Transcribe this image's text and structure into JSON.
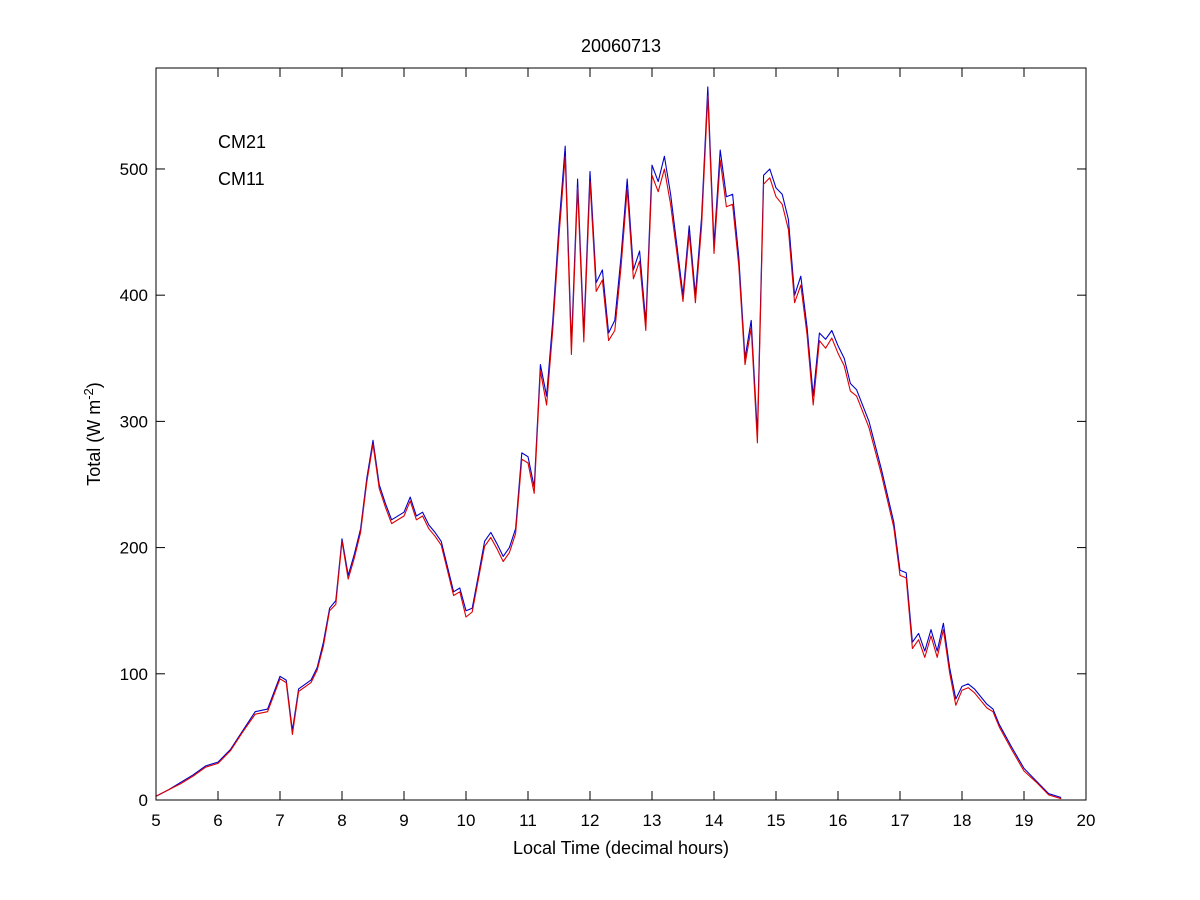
{
  "chart_data": {
    "type": "line",
    "title": "20060713",
    "xlabel": "Local Time (decimal hours)",
    "ylabel": {
      "prefix": "Total (W m",
      "superscript": "-2",
      "suffix": ")"
    },
    "xlim": [
      5,
      20
    ],
    "ylim": [
      0,
      580
    ],
    "xticks": [
      5,
      6,
      7,
      8,
      9,
      10,
      11,
      12,
      13,
      14,
      15,
      16,
      17,
      18,
      19,
      20
    ],
    "yticks": [
      0,
      100,
      200,
      300,
      400,
      500
    ],
    "grid": false,
    "legend_position": "top-left",
    "series": [
      {
        "name": "CM21",
        "color": "#0000cc",
        "x": [
          5.0,
          5.2,
          5.4,
          5.6,
          5.8,
          6.0,
          6.2,
          6.4,
          6.6,
          6.8,
          6.9,
          7.0,
          7.1,
          7.2,
          7.3,
          7.5,
          7.6,
          7.7,
          7.8,
          7.9,
          8.0,
          8.1,
          8.2,
          8.3,
          8.4,
          8.5,
          8.6,
          8.7,
          8.8,
          9.0,
          9.1,
          9.2,
          9.3,
          9.4,
          9.5,
          9.6,
          9.7,
          9.8,
          9.9,
          10.0,
          10.1,
          10.2,
          10.3,
          10.4,
          10.5,
          10.6,
          10.7,
          10.8,
          10.9,
          11.0,
          11.1,
          11.2,
          11.3,
          11.4,
          11.5,
          11.6,
          11.7,
          11.8,
          11.9,
          12.0,
          12.1,
          12.2,
          12.3,
          12.4,
          12.5,
          12.6,
          12.7,
          12.8,
          12.9,
          13.0,
          13.1,
          13.2,
          13.3,
          13.4,
          13.5,
          13.6,
          13.7,
          13.8,
          13.9,
          14.0,
          14.1,
          14.2,
          14.3,
          14.4,
          14.5,
          14.6,
          14.7,
          14.8,
          14.9,
          15.0,
          15.1,
          15.2,
          15.3,
          15.4,
          15.5,
          15.6,
          15.7,
          15.8,
          15.9,
          16.0,
          16.1,
          16.2,
          16.3,
          16.5,
          16.7,
          16.9,
          17.0,
          17.1,
          17.2,
          17.3,
          17.4,
          17.5,
          17.6,
          17.7,
          17.8,
          17.9,
          18.0,
          18.1,
          18.2,
          18.3,
          18.4,
          18.5,
          18.6,
          18.8,
          19.0,
          19.2,
          19.4,
          19.6
        ],
        "y": [
          3,
          8,
          14,
          20,
          27,
          30,
          40,
          55,
          70,
          72,
          85,
          98,
          95,
          55,
          88,
          95,
          105,
          125,
          152,
          158,
          207,
          178,
          195,
          215,
          255,
          285,
          250,
          235,
          222,
          228,
          240,
          225,
          228,
          218,
          212,
          205,
          185,
          165,
          168,
          150,
          152,
          178,
          205,
          212,
          203,
          193,
          200,
          215,
          275,
          272,
          248,
          345,
          320,
          380,
          455,
          518,
          360,
          492,
          370,
          498,
          410,
          420,
          370,
          380,
          430,
          492,
          420,
          435,
          378,
          503,
          490,
          510,
          480,
          440,
          400,
          455,
          400,
          462,
          565,
          440,
          515,
          478,
          480,
          430,
          350,
          380,
          290,
          495,
          500,
          485,
          480,
          460,
          400,
          415,
          375,
          320,
          370,
          365,
          372,
          360,
          350,
          330,
          325,
          300,
          262,
          220,
          182,
          180,
          125,
          132,
          118,
          135,
          118,
          140,
          105,
          80,
          90,
          92,
          88,
          82,
          76,
          72,
          60,
          42,
          25,
          15,
          5,
          2
        ]
      },
      {
        "name": "CM11",
        "color": "#dd0000",
        "x": [
          5.0,
          5.2,
          5.4,
          5.6,
          5.8,
          6.0,
          6.2,
          6.4,
          6.6,
          6.8,
          6.9,
          7.0,
          7.1,
          7.2,
          7.3,
          7.5,
          7.6,
          7.7,
          7.8,
          7.9,
          8.0,
          8.1,
          8.2,
          8.3,
          8.4,
          8.5,
          8.6,
          8.7,
          8.8,
          9.0,
          9.1,
          9.2,
          9.3,
          9.4,
          9.5,
          9.6,
          9.7,
          9.8,
          9.9,
          10.0,
          10.1,
          10.2,
          10.3,
          10.4,
          10.5,
          10.6,
          10.7,
          10.8,
          10.9,
          11.0,
          11.1,
          11.2,
          11.3,
          11.4,
          11.5,
          11.6,
          11.7,
          11.8,
          11.9,
          12.0,
          12.1,
          12.2,
          12.3,
          12.4,
          12.5,
          12.6,
          12.7,
          12.8,
          12.9,
          13.0,
          13.1,
          13.2,
          13.3,
          13.4,
          13.5,
          13.6,
          13.7,
          13.8,
          13.9,
          14.0,
          14.1,
          14.2,
          14.3,
          14.4,
          14.5,
          14.6,
          14.7,
          14.8,
          14.9,
          15.0,
          15.1,
          15.2,
          15.3,
          15.4,
          15.5,
          15.6,
          15.7,
          15.8,
          15.9,
          16.0,
          16.1,
          16.2,
          16.3,
          16.5,
          16.7,
          16.9,
          17.0,
          17.1,
          17.2,
          17.3,
          17.4,
          17.5,
          17.6,
          17.7,
          17.8,
          17.9,
          18.0,
          18.1,
          18.2,
          18.3,
          18.4,
          18.5,
          18.6,
          18.8,
          19.0,
          19.2,
          19.4,
          19.6
        ],
        "y": [
          3,
          8,
          13,
          19,
          26,
          29,
          39,
          54,
          68,
          70,
          83,
          96,
          93,
          52,
          86,
          93,
          103,
          122,
          150,
          155,
          205,
          175,
          192,
          212,
          252,
          282,
          247,
          232,
          219,
          225,
          237,
          222,
          225,
          215,
          209,
          202,
          182,
          162,
          165,
          145,
          149,
          175,
          201,
          208,
          199,
          189,
          196,
          211,
          270,
          267,
          243,
          340,
          313,
          373,
          447,
          510,
          353,
          485,
          363,
          490,
          403,
          412,
          364,
          372,
          422,
          484,
          413,
          427,
          372,
          495,
          482,
          500,
          472,
          434,
          395,
          449,
          394,
          455,
          558,
          433,
          507,
          470,
          472,
          423,
          345,
          374,
          283,
          488,
          493,
          478,
          472,
          452,
          394,
          408,
          369,
          313,
          364,
          358,
          366,
          354,
          344,
          324,
          320,
          295,
          258,
          216,
          178,
          176,
          120,
          127,
          113,
          130,
          113,
          135,
          101,
          75,
          87,
          89,
          85,
          79,
          73,
          70,
          58,
          40,
          23,
          14,
          4,
          1
        ]
      }
    ]
  }
}
